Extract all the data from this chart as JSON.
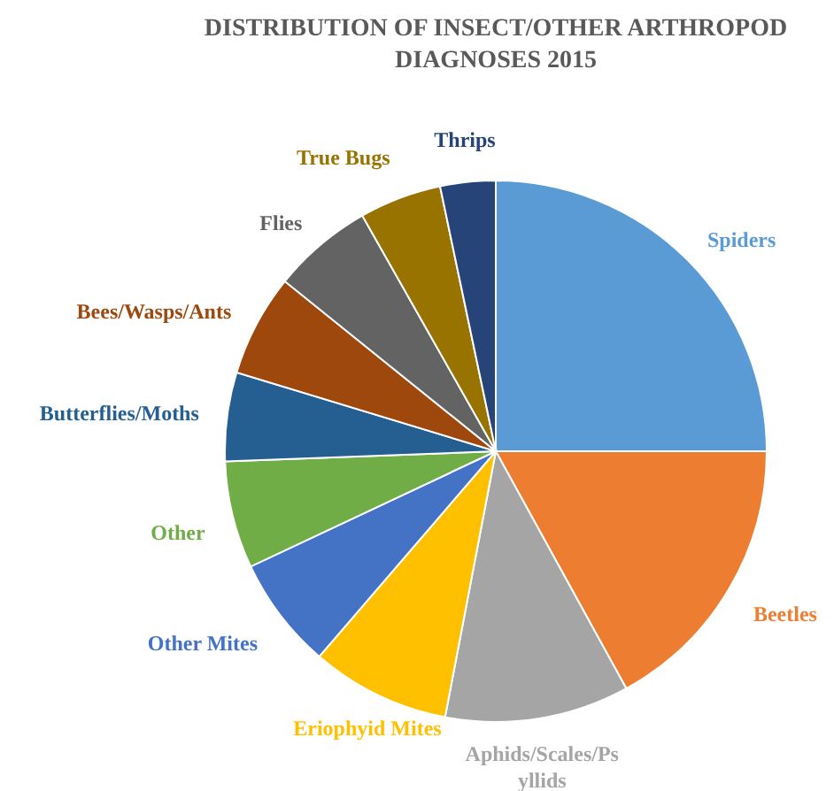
{
  "chart_data": {
    "type": "pie",
    "title": "DISTRIBUTION OF INSECT/OTHER ARTHROPOD DIAGNOSES 2015",
    "categories": [
      "Spiders",
      "Beetles",
      "Aphids/Scales/Psyllids",
      "Eriophyid Mites",
      "Other Mites",
      "Other",
      "Butterflies/Moths",
      "Bees/Wasps/Ants",
      "Flies",
      "True Bugs",
      "Thrips"
    ],
    "values": [
      25,
      17,
      11,
      8.3,
      6.7,
      6.4,
      5.3,
      6.1,
      6,
      4.9,
      3.3
    ],
    "colors": [
      "#5b9bd5",
      "#ed7d31",
      "#a5a5a5",
      "#ffc000",
      "#4472c4",
      "#70ad47",
      "#255e91",
      "#9e480e",
      "#636363",
      "#997300",
      "#264478"
    ]
  }
}
